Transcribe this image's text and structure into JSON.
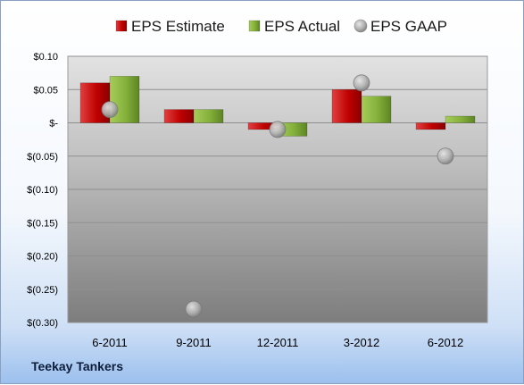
{
  "company": "Teekay Tankers",
  "chart_data": {
    "type": "bar",
    "categories": [
      "6-2011",
      "9-2011",
      "12-2011",
      "3-2012",
      "6-2012"
    ],
    "series": [
      {
        "name": "EPS Estimate",
        "kind": "bar",
        "color": "#c00000",
        "values": [
          0.06,
          0.02,
          -0.01,
          0.05,
          -0.01
        ]
      },
      {
        "name": "EPS Actual",
        "kind": "bar",
        "color": "#6e9c2a",
        "values": [
          0.07,
          0.02,
          -0.02,
          0.04,
          0.01
        ]
      },
      {
        "name": "EPS GAAP",
        "kind": "scatter",
        "color": "#a8a8a8",
        "values": [
          0.02,
          -0.28,
          -0.01,
          0.06,
          -0.05
        ]
      }
    ],
    "y_ticks": [
      0.1,
      0.05,
      0,
      -0.05,
      -0.1,
      -0.15,
      -0.2,
      -0.25,
      -0.3
    ],
    "y_tick_labels": [
      "$0.10",
      "$0.05",
      "$-",
      "$(0.05)",
      "$(0.10)",
      "$(0.15)",
      "$(0.20)",
      "$(0.25)",
      "$(0.30)"
    ],
    "ylim": [
      -0.3,
      0.1
    ],
    "legend_position": "top",
    "grid": true
  }
}
